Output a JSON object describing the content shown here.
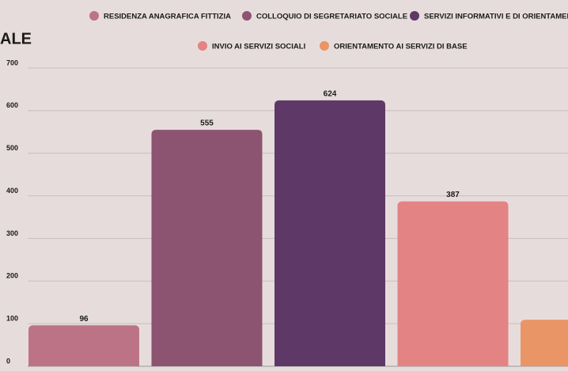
{
  "chart_data": {
    "type": "bar",
    "title": "ALE",
    "series": [
      {
        "name": "RESIDENZA ANAGRAFICA FITTIZIA",
        "color": "#bd7386",
        "values": [
          96
        ]
      },
      {
        "name": "COLLOQUIO DI SEGRETARIATO SOCIALE",
        "color": "#8c5470",
        "values": [
          555
        ]
      },
      {
        "name": "SERVIZI INFORMATIVI E DI ORIENTAMENTO",
        "color": "#5e3866",
        "values": [
          624
        ]
      },
      {
        "name": "INVIO AI SERVIZI SOCIALI",
        "color": "#e38384",
        "values": [
          387
        ]
      },
      {
        "name": "ORIENTAMENTO AI SERVIZI DI BASE",
        "color": "#e99566",
        "values": [
          109
        ]
      }
    ],
    "ylim": [
      0,
      700
    ],
    "yticks": [
      0,
      100,
      200,
      300,
      400,
      500,
      600,
      700
    ],
    "grid": true
  }
}
